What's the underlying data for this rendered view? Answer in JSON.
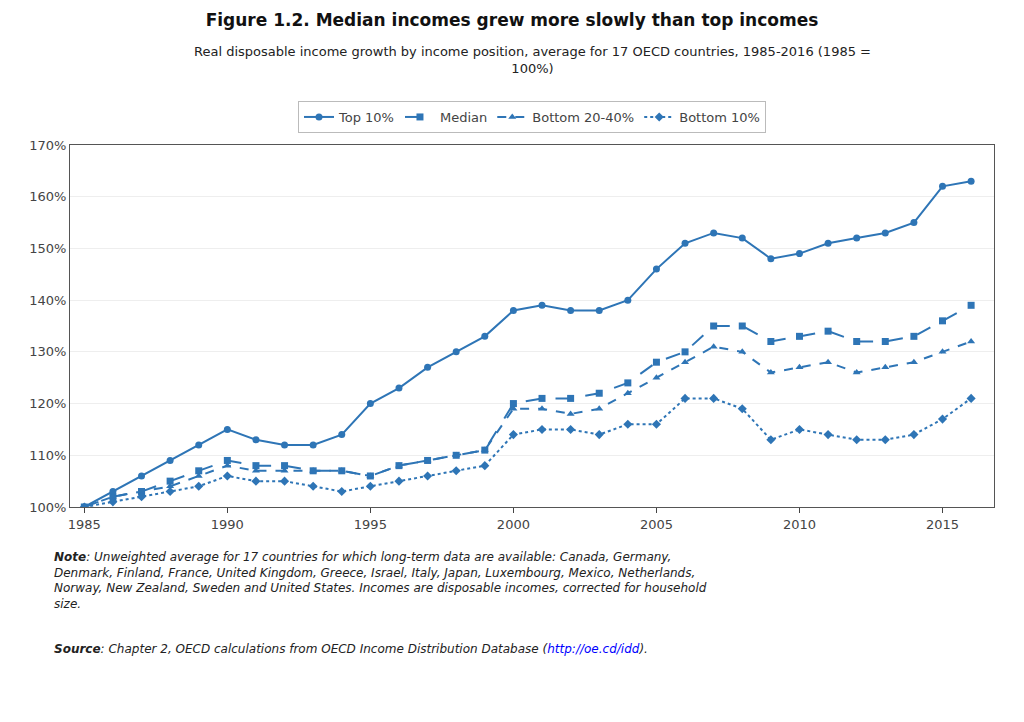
{
  "chart_data": {
    "type": "line",
    "title": "Figure 1.2. Median incomes grew more slowly than top incomes",
    "subtitle": "Real disposable income growth by income position, average for 17 OECD countries, 1985-2016 (1985 =\n100%)",
    "annotations": [
      {
        "bold": "Note",
        "text": ": Unweighted average for 17 countries for which long-term data are available: Canada, Germany,\nDenmark, Finland, France, United Kingdom, Greece, Israel, Italy, Japan, Luxembourg, Mexico, Netherlands,\nNorway, New Zealand, Sweden and United States. Incomes are disposable incomes, corrected for household\nsize."
      },
      {
        "bold": "Source",
        "text": ": Chapter 2, OECD calculations from OECD Income Distribution Database (",
        "link": "http://oe.cd/idd",
        "end": ")."
      }
    ],
    "x": [
      1985,
      1986,
      1987,
      1988,
      1989,
      1990,
      1991,
      1992,
      1993,
      1994,
      1995,
      1996,
      1997,
      1998,
      1999,
      2000,
      2001,
      2002,
      2003,
      2004,
      2005,
      2006,
      2007,
      2008,
      2009,
      2010,
      2011,
      2012,
      2013,
      2014,
      2015,
      2016
    ],
    "series": [
      {
        "name": "Top 10%",
        "color": "#2e75b6",
        "marker": "circle",
        "line_style": "solid",
        "values": [
          100,
          103,
          106,
          109,
          112,
          115,
          113,
          112,
          112,
          114,
          120,
          123,
          127,
          130,
          133,
          138,
          139,
          138,
          138,
          140,
          146,
          151,
          153,
          152,
          148,
          149,
          151,
          152,
          153,
          155,
          162,
          163
        ]
      },
      {
        "name": "Median",
        "color": "#2e75b6",
        "marker": "square",
        "line_style": "longdash",
        "values": [
          100,
          102,
          103,
          105,
          107,
          109,
          108,
          108,
          107,
          107,
          106,
          108,
          109,
          110,
          111,
          120,
          121,
          121,
          122,
          124,
          128,
          130,
          135,
          135,
          132,
          133,
          134,
          132,
          132,
          133,
          136,
          139
        ]
      },
      {
        "name": "Bottom 20-40%",
        "color": "#2e75b6",
        "marker": "triangle-up",
        "line_style": "dash",
        "values": [
          100,
          102,
          103,
          104,
          106,
          108,
          107,
          107,
          107,
          107,
          106,
          108,
          109,
          110,
          111,
          119,
          119,
          118,
          119,
          122,
          125,
          128,
          131,
          130,
          126,
          127,
          128,
          126,
          127,
          128,
          130,
          132
        ]
      },
      {
        "name": "Bottom 10%",
        "color": "#2e75b6",
        "marker": "diamond",
        "line_style": "dot",
        "values": [
          100,
          101,
          102,
          103,
          104,
          106,
          105,
          105,
          104,
          103,
          104,
          105,
          106,
          107,
          108,
          114,
          115,
          115,
          114,
          116,
          116,
          121,
          121,
          119,
          113,
          115,
          114,
          113,
          113,
          114,
          117,
          121
        ]
      }
    ],
    "xlim": [
      1984.5,
      2016.8
    ],
    "xticks": [
      1985,
      1990,
      1995,
      2000,
      2005,
      2010,
      2015
    ],
    "ylim": [
      100,
      170
    ],
    "yticks": [
      {
        "value": 100,
        "label": "100%"
      },
      {
        "value": 110,
        "label": "110%"
      },
      {
        "value": 120,
        "label": "120%"
      },
      {
        "value": 130,
        "label": "130%"
      },
      {
        "value": 140,
        "label": "140%"
      },
      {
        "value": 150,
        "label": "150%"
      },
      {
        "value": 160,
        "label": "160%"
      },
      {
        "value": 170,
        "label": "170%"
      }
    ],
    "grid": "y",
    "legend": "top"
  }
}
